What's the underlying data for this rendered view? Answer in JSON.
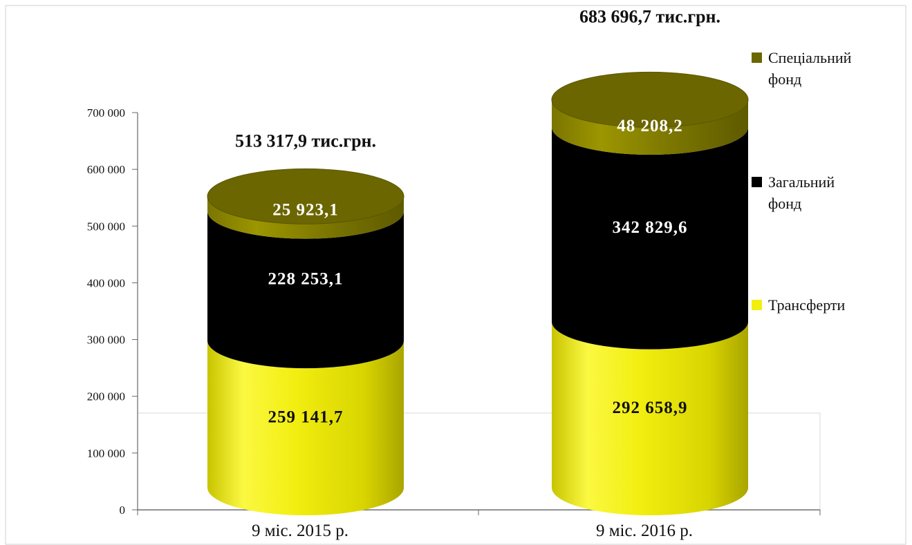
{
  "chart_data": {
    "type": "bar",
    "stacked": true,
    "style": "3d-cylinder",
    "categories": [
      "9 міс. 2015 р.",
      "9 міс. 2016 р."
    ],
    "series": [
      {
        "name": "Трансферти",
        "values": [
          259141.7,
          292658.9
        ],
        "labels": [
          "259 141,7",
          "292 658,9"
        ],
        "color": "#f2ee10",
        "label_color": "#111111"
      },
      {
        "name": "Загальний фонд",
        "values": [
          228253.1,
          342829.6
        ],
        "labels": [
          "228 253,1",
          "342 829,6"
        ],
        "color": "#000000",
        "label_color": "#ffffff"
      },
      {
        "name": "Спеціальний фонд",
        "values": [
          25923.1,
          48208.2
        ],
        "labels": [
          "25 923,1",
          "48 208,2"
        ],
        "color": "#6b6600",
        "label_color": "#ffffff"
      }
    ],
    "totals": [
      "513 317,9 тис.грн.",
      "683 696,7 тис.грн."
    ],
    "title_fragment": "",
    "ylim": [
      0,
      700000
    ],
    "yticks": [
      0,
      100000,
      200000,
      300000,
      400000,
      500000,
      600000,
      700000
    ],
    "ytick_labels": [
      "0",
      "100 000",
      "200 000",
      "300 000",
      "400 000",
      "500 000",
      "600 000",
      "700 000"
    ],
    "legend": [
      "Спеціальний фонд",
      "Загальний фонд",
      "Трансферти"
    ],
    "legend_position": "right",
    "xlabel": "",
    "ylabel": ""
  }
}
